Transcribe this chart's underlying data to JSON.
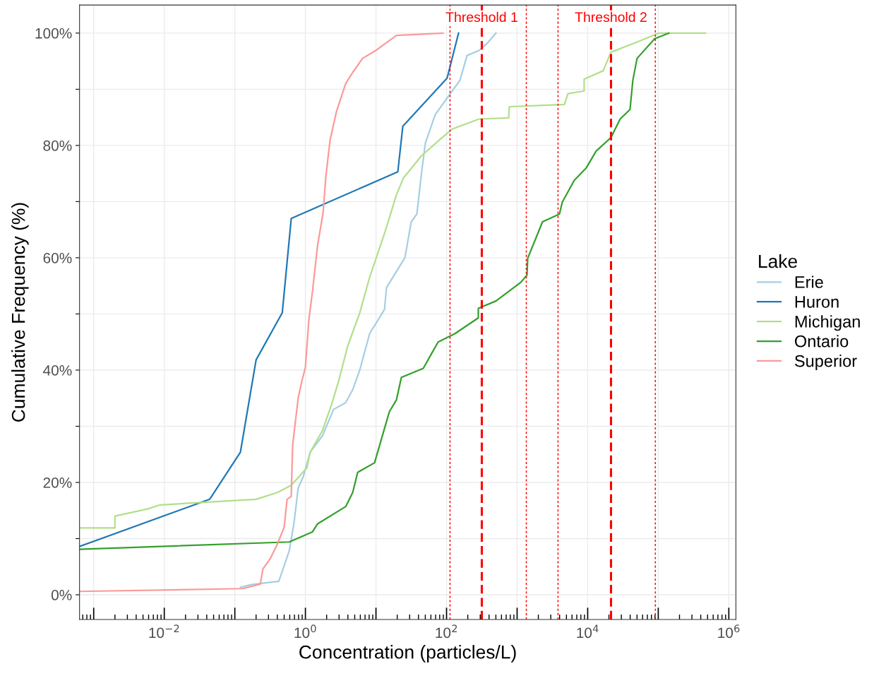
{
  "chart_data": {
    "type": "line",
    "xlabel": "Concentration (particles/L)",
    "ylabel": "Cumulative Frequency (%)",
    "legend_title": "Lake",
    "legend": "right",
    "grid": true,
    "log": "x",
    "line_style": "solid",
    "marker": "none",
    "xlim": [
      0.00063,
      1260000
    ],
    "ylim": [
      -4.4,
      105
    ],
    "xticks": [
      {
        "value": 0.001,
        "label": null
      },
      {
        "value": 0.01,
        "label": "10$^{−2}$"
      },
      {
        "value": 0.1,
        "label": null
      },
      {
        "value": 1,
        "label": "10$^{0}$"
      },
      {
        "value": 10,
        "label": null
      },
      {
        "value": 100,
        "label": "10$^{2}$"
      },
      {
        "value": 1000,
        "label": null
      },
      {
        "value": 10000,
        "label": "10$^{4}$"
      },
      {
        "value": 100000,
        "label": null
      },
      {
        "value": 1000000,
        "label": "10$^{6}$"
      }
    ],
    "yticks": [
      {
        "value": 0,
        "label": "0%"
      },
      {
        "value": 10,
        "label": null
      },
      {
        "value": 20,
        "label": "20%"
      },
      {
        "value": 30,
        "label": null
      },
      {
        "value": 40,
        "label": "40%"
      },
      {
        "value": 50,
        "label": null
      },
      {
        "value": 60,
        "label": "60%"
      },
      {
        "value": 70,
        "label": null
      },
      {
        "value": 80,
        "label": "80%"
      },
      {
        "value": 90,
        "label": null
      },
      {
        "value": 100,
        "label": "100%"
      }
    ],
    "series": [
      {
        "name": "Erie",
        "color": "#a6cee3",
        "x": [
          0.12,
          0.17,
          0.42,
          0.59,
          0.69,
          0.79,
          0.93,
          1.17,
          1.74,
          2.51,
          3.72,
          4.68,
          5.89,
          8.13,
          13.2,
          14.1,
          25.7,
          31.6,
          38,
          44.7,
          50.1,
          69.2,
          155,
          195,
          288,
          372,
          501
        ],
        "values": [
          1.3,
          1.8,
          2.4,
          7.8,
          12.8,
          19,
          21,
          25.4,
          28.3,
          33,
          34.2,
          36.5,
          40,
          46.5,
          50.8,
          54.7,
          60,
          66.4,
          67.8,
          75.6,
          80.4,
          85.5,
          91.6,
          96,
          96.9,
          98.1,
          100
        ]
      },
      {
        "name": "Huron",
        "color": "#1f78b4",
        "x": [
          0.00063,
          0.044,
          0.12,
          0.2,
          0.47,
          0.63,
          20.4,
          24,
          102,
          148
        ],
        "values": [
          8.6,
          17,
          25.4,
          41.8,
          50.2,
          67,
          75.3,
          83.4,
          92,
          100
        ]
      },
      {
        "name": "Michigan",
        "color": "#b2df8a",
        "x": [
          0.00063,
          0.002,
          0.002,
          0.0059,
          0.0087,
          0.2,
          0.4,
          0.63,
          1.05,
          1.17,
          1.74,
          2.34,
          2.95,
          3.98,
          5.89,
          8.13,
          13.2,
          19.5,
          24.5,
          43.7,
          81.3,
          120,
          288,
          759,
          776,
          4677,
          5248,
          8913,
          8913,
          16600,
          21380,
          50120,
          102300,
          467700
        ],
        "values": [
          11.9,
          11.9,
          14,
          15.3,
          16,
          17,
          18.2,
          19.5,
          22.6,
          25.4,
          29.2,
          33.8,
          38,
          44.3,
          50.2,
          56.5,
          64.3,
          71.2,
          74.2,
          78.1,
          81.1,
          82.9,
          84.7,
          84.9,
          86.9,
          87.3,
          89.2,
          89.7,
          91.8,
          93.3,
          96.6,
          98.4,
          100,
          100
        ]
      },
      {
        "name": "Ontario",
        "color": "#33a02c",
        "x": [
          0.00063,
          0.59,
          1.26,
          1.48,
          3.72,
          4.68,
          5.5,
          9.55,
          13.2,
          15.5,
          19.5,
          22.9,
          46.8,
          61.7,
          75.9,
          132,
          282,
          282,
          501,
          1122,
          1380,
          1413,
          2291,
          3981,
          4365,
          6457,
          9550,
          13180,
          21380,
          28840,
          39810,
          43650,
          50120,
          89130,
          141300
        ],
        "values": [
          8.1,
          9.4,
          11.2,
          12.6,
          15.7,
          18.2,
          21.8,
          23.5,
          29.6,
          32.6,
          34.7,
          38.7,
          40.3,
          43,
          45,
          46.5,
          49.3,
          51,
          52.3,
          55.6,
          56.9,
          59.9,
          66.4,
          67.8,
          69.9,
          73.8,
          76,
          79,
          81.4,
          84.7,
          86.4,
          91.6,
          95.5,
          99,
          100
        ]
      },
      {
        "name": "Superior",
        "color": "#fb9a99",
        "x": [
          0.00063,
          0.13,
          0.23,
          0.25,
          0.32,
          0.39,
          0.5,
          0.55,
          0.63,
          0.66,
          0.79,
          0.89,
          1,
          1.12,
          1.26,
          1.48,
          1.78,
          1.95,
          2.24,
          2.75,
          3.72,
          4.68,
          6.46,
          10.2,
          19.5,
          89.1
        ],
        "values": [
          0.6,
          1.1,
          1.9,
          4.6,
          6.5,
          8.7,
          12,
          17,
          17.5,
          26.7,
          35,
          38,
          40.5,
          49,
          54,
          62,
          68,
          74.5,
          81,
          86,
          91,
          93,
          95.5,
          97,
          99.6,
          100
        ]
      }
    ],
    "ref_lines": [
      {
        "axis": "x",
        "value": 112,
        "color": "#ff0000",
        "line_style": "dotted"
      },
      {
        "axis": "x",
        "value": 316,
        "label": "Threshold 1",
        "color": "#ff0000",
        "line_style": "dashed"
      },
      {
        "axis": "x",
        "value": 1350,
        "color": "#ff0000",
        "line_style": "dotted"
      },
      {
        "axis": "x",
        "value": 3800,
        "color": "#ff0000",
        "line_style": "dotted"
      },
      {
        "axis": "x",
        "value": 21400,
        "label": "Threshold 2",
        "color": "#ff0000",
        "line_style": "dashed"
      },
      {
        "axis": "x",
        "value": 91000,
        "color": "#ff0000",
        "line_style": "dotted"
      }
    ]
  }
}
